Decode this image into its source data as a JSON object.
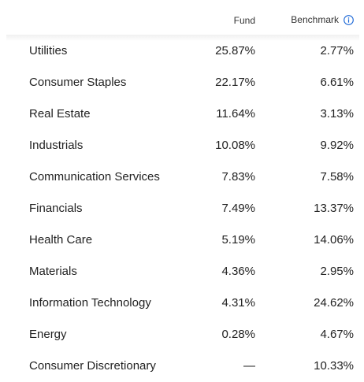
{
  "header": {
    "fund_label": "Fund",
    "benchmark_label": "Benchmark",
    "info_icon": "info-circle-icon",
    "accent_color": "#1a66d6"
  },
  "sectors": [
    {
      "name": "Utilities",
      "fund": "25.87%",
      "benchmark": "2.77%"
    },
    {
      "name": "Consumer Staples",
      "fund": "22.17%",
      "benchmark": "6.61%"
    },
    {
      "name": "Real Estate",
      "fund": "11.64%",
      "benchmark": "3.13%"
    },
    {
      "name": "Industrials",
      "fund": "10.08%",
      "benchmark": "9.92%"
    },
    {
      "name": "Communication Services",
      "fund": "7.83%",
      "benchmark": "7.58%"
    },
    {
      "name": "Financials",
      "fund": "7.49%",
      "benchmark": "13.37%"
    },
    {
      "name": "Health Care",
      "fund": "5.19%",
      "benchmark": "14.06%"
    },
    {
      "name": "Materials",
      "fund": "4.36%",
      "benchmark": "2.95%"
    },
    {
      "name": "Information Technology",
      "fund": "4.31%",
      "benchmark": "24.62%"
    },
    {
      "name": "Energy",
      "fund": "0.28%",
      "benchmark": "4.67%"
    },
    {
      "name": "Consumer Discretionary",
      "fund": "—",
      "benchmark": "10.33%"
    }
  ]
}
